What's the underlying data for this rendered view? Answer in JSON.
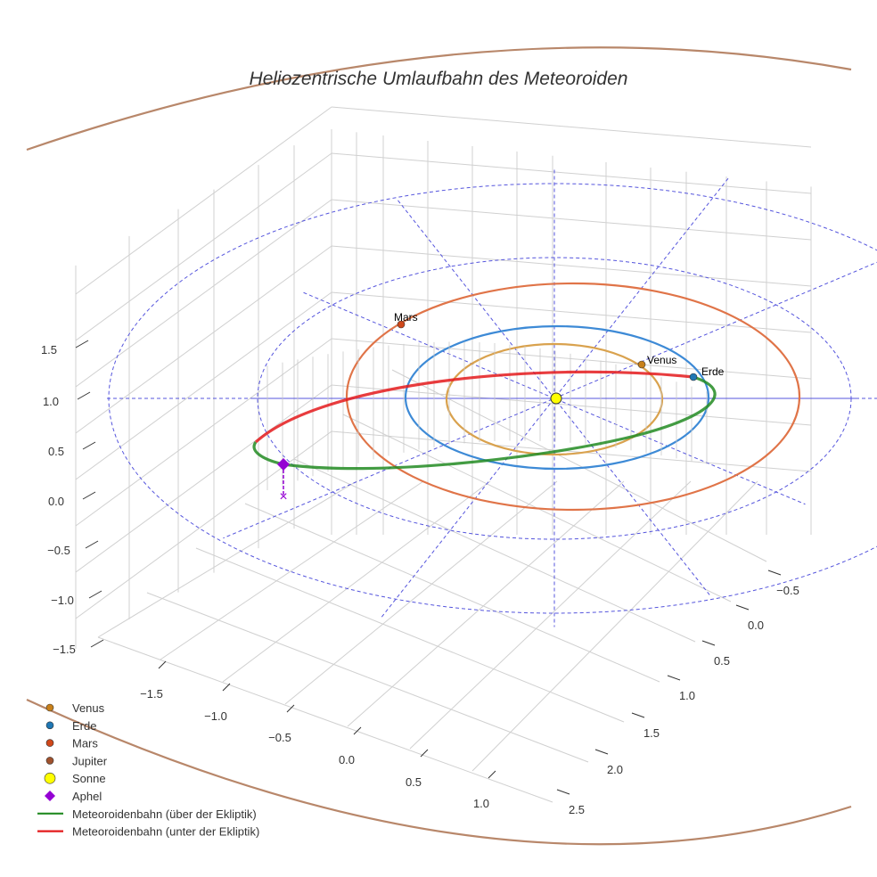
{
  "chart_data": {
    "type": "line",
    "projection": "3d",
    "title": "Heliozentrische Umlaufbahn des Meteoroiden",
    "x_ticks": [
      "−1.5",
      "−1.0",
      "−0.5",
      "0.0",
      "0.5",
      "1.0"
    ],
    "y_ticks": [
      "−0.5",
      "0.0",
      "0.5",
      "1.0",
      "1.5",
      "2.0",
      "2.5"
    ],
    "z_ticks": [
      "1.5",
      "1.0",
      "0.5",
      "0.0",
      "−0.5",
      "−1.0",
      "−1.5"
    ],
    "grid": true,
    "legend_position": "bottom-left",
    "labels": {
      "mars": "Mars",
      "venus": "Venus",
      "erde": "Erde"
    },
    "legend": [
      {
        "label": "Venus",
        "marker": "circle",
        "color": "#c8801a"
      },
      {
        "label": "Erde",
        "marker": "circle",
        "color": "#1f77b4"
      },
      {
        "label": "Mars",
        "marker": "circle",
        "color": "#d0481a"
      },
      {
        "label": "Jupiter",
        "marker": "circle",
        "color": "#a0522d"
      },
      {
        "label": "Sonne",
        "marker": "circle",
        "color": "#ffff00"
      },
      {
        "label": "Aphel",
        "marker": "diamond",
        "color": "#9400d3"
      },
      {
        "label": "Meteoroidenbahn (über der Ekliptik)",
        "marker": "line",
        "color": "#228b22"
      },
      {
        "label": "Meteoroidenbahn (unter der Ekliptik)",
        "marker": "line",
        "color": "#e41a1c"
      }
    ],
    "orbit_colors": {
      "venus": "#d9a24e",
      "erde": "#3d8ad6",
      "mars": "#e07448",
      "jupiter": "#b8876a",
      "reference": "#5555dd"
    }
  }
}
